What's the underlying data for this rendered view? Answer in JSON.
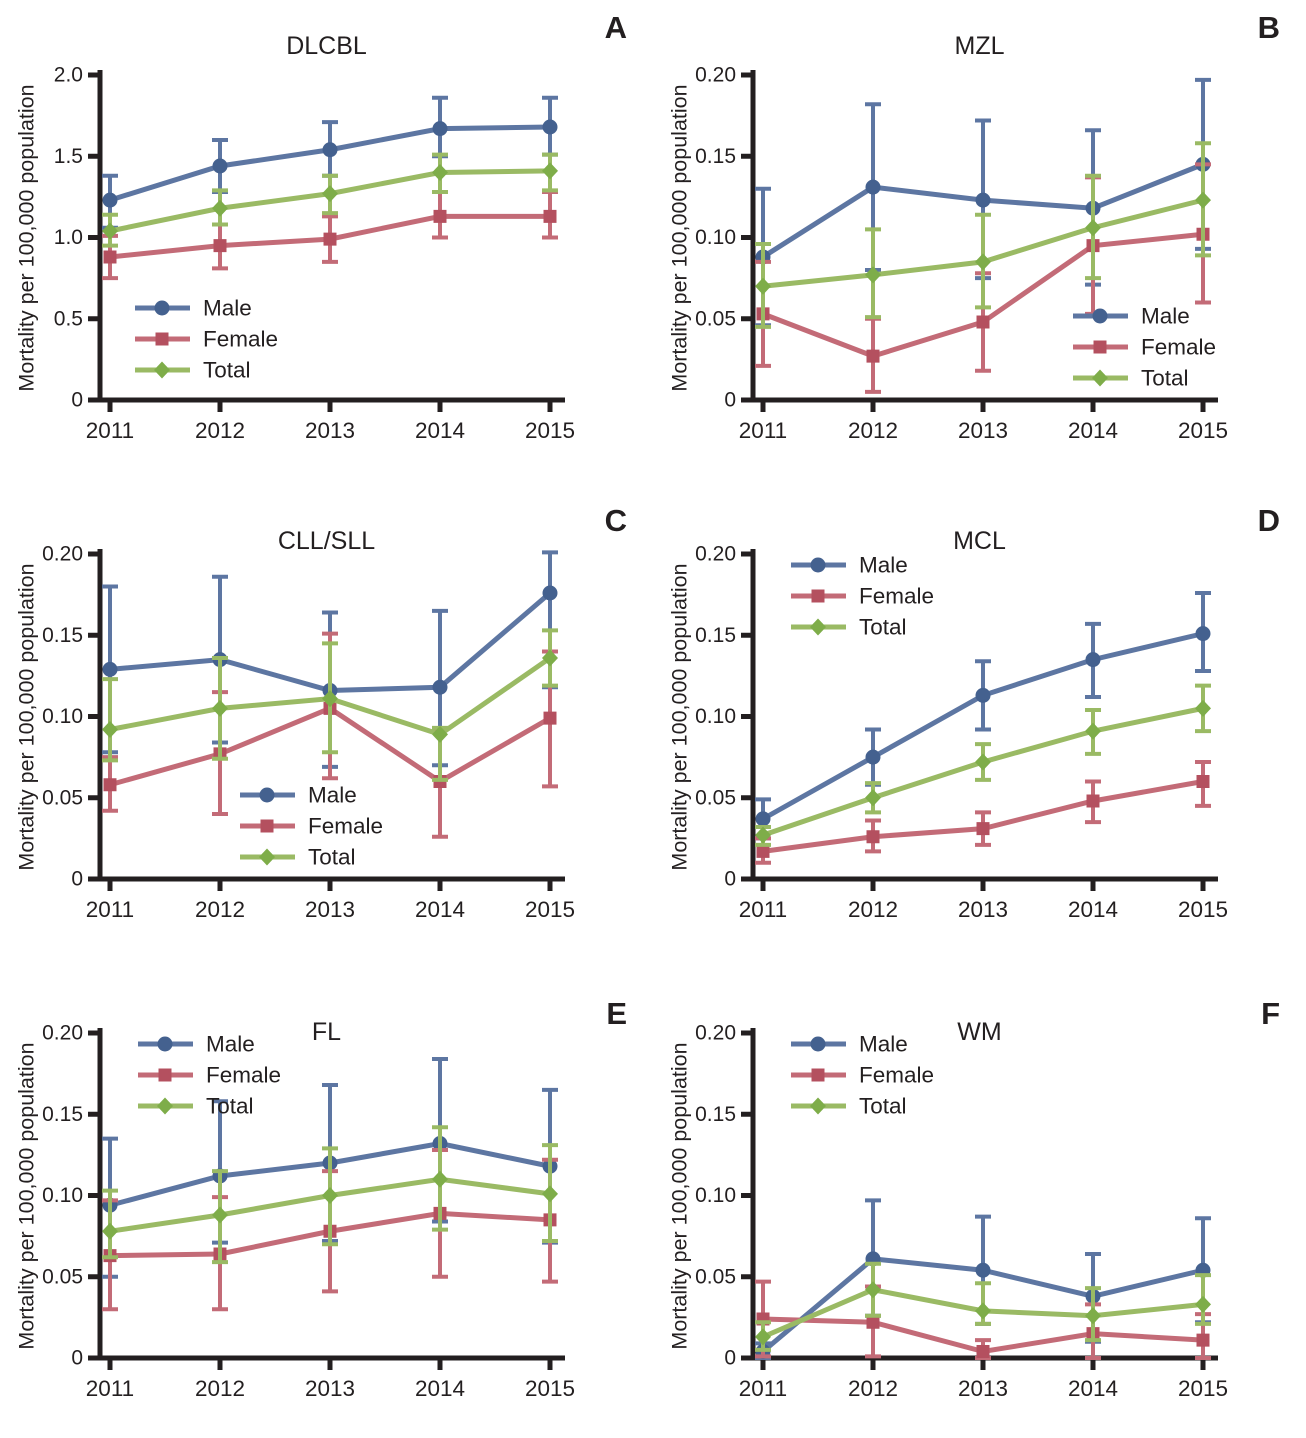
{
  "figure": {
    "ylabel": "Mortality per 100,000 population",
    "years": [
      "2011",
      "2012",
      "2013",
      "2014",
      "2015"
    ],
    "legend_entries": [
      "Male",
      "Female",
      "Total"
    ]
  },
  "colors": {
    "axis": "#231f20",
    "male_line": "#5d76a2",
    "male_marker": "#44618f",
    "female_line": "#c36b77",
    "female_marker": "#b4505f",
    "total_line": "#9aba64",
    "total_marker": "#7ead49"
  },
  "chart_data": [
    {
      "type": "line",
      "panel_letter": "A",
      "title": "DLCBL",
      "xlabel": "",
      "ylabel": "Mortality per 100,000 population",
      "x": [
        "2011",
        "2012",
        "2013",
        "2014",
        "2015"
      ],
      "ylim": [
        0,
        2.0
      ],
      "yticks": [
        0,
        0.5,
        1.0,
        1.5,
        2.0
      ],
      "ytick_labels": [
        "0",
        "0.5",
        "1.0",
        "1.5",
        "2.0"
      ],
      "grid": false,
      "legend_position": "bottom-left",
      "series": [
        {
          "name": "Male",
          "marker": "circle",
          "color": "#5d76a2",
          "marker_color": "#44618f",
          "values": [
            1.23,
            1.44,
            1.54,
            1.67,
            1.68
          ],
          "err_low": [
            1.06,
            1.28,
            1.38,
            1.5,
            1.51
          ],
          "err_high": [
            1.38,
            1.6,
            1.71,
            1.86,
            1.86
          ]
        },
        {
          "name": "Female",
          "marker": "square",
          "color": "#c36b77",
          "marker_color": "#b4505f",
          "values": [
            0.88,
            0.95,
            0.99,
            1.13,
            1.13
          ],
          "err_low": [
            0.75,
            0.81,
            0.85,
            1.0,
            1.0
          ],
          "err_high": [
            1.01,
            1.08,
            1.13,
            1.28,
            1.28
          ]
        },
        {
          "name": "Total",
          "marker": "diamond",
          "color": "#9aba64",
          "marker_color": "#7ead49",
          "values": [
            1.04,
            1.18,
            1.27,
            1.4,
            1.41
          ],
          "err_low": [
            0.95,
            1.08,
            1.15,
            1.28,
            1.29
          ],
          "err_high": [
            1.14,
            1.29,
            1.38,
            1.51,
            1.51
          ]
        }
      ]
    },
    {
      "type": "line",
      "panel_letter": "B",
      "title": "MZL",
      "xlabel": "",
      "ylabel": "Mortality per 100,000 population",
      "x": [
        "2011",
        "2012",
        "2013",
        "2014",
        "2015"
      ],
      "ylim": [
        0,
        0.2
      ],
      "yticks": [
        0,
        0.05,
        0.1,
        0.15,
        0.2
      ],
      "ytick_labels": [
        "0",
        "0.05",
        "0.10",
        "0.15",
        "0.20"
      ],
      "grid": false,
      "legend_position": "bottom-right",
      "series": [
        {
          "name": "Male",
          "marker": "circle",
          "color": "#5d76a2",
          "marker_color": "#44618f",
          "values": [
            0.088,
            0.131,
            0.123,
            0.118,
            0.145
          ],
          "err_low": [
            0.046,
            0.08,
            0.075,
            0.071,
            0.093
          ],
          "err_high": [
            0.13,
            0.182,
            0.172,
            0.166,
            0.197
          ]
        },
        {
          "name": "Female",
          "marker": "square",
          "color": "#c36b77",
          "marker_color": "#b4505f",
          "values": [
            0.053,
            0.027,
            0.048,
            0.095,
            0.102
          ],
          "err_low": [
            0.021,
            0.005,
            0.018,
            0.053,
            0.06
          ],
          "err_high": [
            0.085,
            0.05,
            0.078,
            0.137,
            0.145
          ]
        },
        {
          "name": "Total",
          "marker": "diamond",
          "color": "#9aba64",
          "marker_color": "#7ead49",
          "values": [
            0.07,
            0.077,
            0.085,
            0.106,
            0.123
          ],
          "err_low": [
            0.045,
            0.051,
            0.057,
            0.075,
            0.089
          ],
          "err_high": [
            0.096,
            0.105,
            0.114,
            0.138,
            0.158
          ]
        }
      ]
    },
    {
      "type": "line",
      "panel_letter": "C",
      "title": "CLL/SLL",
      "xlabel": "",
      "ylabel": "Mortality per 100,000 population",
      "x": [
        "2011",
        "2012",
        "2013",
        "2014",
        "2015"
      ],
      "ylim": [
        0,
        0.2
      ],
      "yticks": [
        0,
        0.05,
        0.1,
        0.15,
        0.2
      ],
      "ytick_labels": [
        "0",
        "0.05",
        "0.10",
        "0.15",
        "0.20"
      ],
      "grid": false,
      "legend_position": "bottom-center",
      "series": [
        {
          "name": "Male",
          "marker": "circle",
          "color": "#5d76a2",
          "marker_color": "#44618f",
          "values": [
            0.129,
            0.135,
            0.116,
            0.118,
            0.176
          ],
          "err_low": [
            0.078,
            0.084,
            0.069,
            0.07,
            0.118
          ],
          "err_high": [
            0.18,
            0.186,
            0.164,
            0.165,
            0.201
          ]
        },
        {
          "name": "Female",
          "marker": "square",
          "color": "#c36b77",
          "marker_color": "#b4505f",
          "values": [
            0.058,
            0.077,
            0.105,
            0.06,
            0.099
          ],
          "err_low": [
            0.042,
            0.04,
            0.062,
            0.026,
            0.057
          ],
          "err_high": [
            0.075,
            0.115,
            0.151,
            0.092,
            0.14
          ]
        },
        {
          "name": "Total",
          "marker": "diamond",
          "color": "#9aba64",
          "marker_color": "#7ead49",
          "values": [
            0.092,
            0.105,
            0.111,
            0.089,
            0.136
          ],
          "err_low": [
            0.073,
            0.074,
            0.078,
            0.061,
            0.119
          ],
          "err_high": [
            0.123,
            0.136,
            0.145,
            0.093,
            0.153
          ]
        }
      ]
    },
    {
      "type": "line",
      "panel_letter": "D",
      "title": "MCL",
      "xlabel": "",
      "ylabel": "Mortality per 100,000 population",
      "x": [
        "2011",
        "2012",
        "2013",
        "2014",
        "2015"
      ],
      "ylim": [
        0,
        0.2
      ],
      "yticks": [
        0,
        0.05,
        0.1,
        0.15,
        0.2
      ],
      "ytick_labels": [
        "0",
        "0.05",
        "0.10",
        "0.15",
        "0.20"
      ],
      "grid": false,
      "legend_position": "top-left",
      "series": [
        {
          "name": "Male",
          "marker": "circle",
          "color": "#5d76a2",
          "marker_color": "#44618f",
          "values": [
            0.037,
            0.075,
            0.113,
            0.135,
            0.151
          ],
          "err_low": [
            0.025,
            0.058,
            0.092,
            0.112,
            0.128
          ],
          "err_high": [
            0.049,
            0.092,
            0.134,
            0.157,
            0.176
          ]
        },
        {
          "name": "Female",
          "marker": "square",
          "color": "#c36b77",
          "marker_color": "#b4505f",
          "values": [
            0.017,
            0.026,
            0.031,
            0.048,
            0.06
          ],
          "err_low": [
            0.01,
            0.017,
            0.021,
            0.035,
            0.045
          ],
          "err_high": [
            0.025,
            0.036,
            0.041,
            0.06,
            0.072
          ]
        },
        {
          "name": "Total",
          "marker": "diamond",
          "color": "#9aba64",
          "marker_color": "#7ead49",
          "values": [
            0.027,
            0.05,
            0.072,
            0.091,
            0.105
          ],
          "err_low": [
            0.021,
            0.041,
            0.061,
            0.077,
            0.091
          ],
          "err_high": [
            0.032,
            0.059,
            0.083,
            0.104,
            0.119
          ]
        }
      ]
    },
    {
      "type": "line",
      "panel_letter": "E",
      "title": "FL",
      "xlabel": "",
      "ylabel": "Mortality per 100,000 population",
      "x": [
        "2011",
        "2012",
        "2013",
        "2014",
        "2015"
      ],
      "ylim": [
        0,
        0.2
      ],
      "yticks": [
        0,
        0.05,
        0.1,
        0.15,
        0.2
      ],
      "ytick_labels": [
        "0",
        "0.05",
        "0.10",
        "0.15",
        "0.20"
      ],
      "grid": false,
      "legend_position": "top-left",
      "series": [
        {
          "name": "Male",
          "marker": "circle",
          "color": "#5d76a2",
          "marker_color": "#44618f",
          "values": [
            0.094,
            0.112,
            0.12,
            0.132,
            0.118
          ],
          "err_low": [
            0.05,
            0.071,
            0.072,
            0.084,
            0.071
          ],
          "err_high": [
            0.135,
            0.158,
            0.168,
            0.184,
            0.165
          ]
        },
        {
          "name": "Female",
          "marker": "square",
          "color": "#c36b77",
          "marker_color": "#b4505f",
          "values": [
            0.063,
            0.064,
            0.078,
            0.089,
            0.085
          ],
          "err_low": [
            0.03,
            0.03,
            0.041,
            0.05,
            0.047
          ],
          "err_high": [
            0.097,
            0.099,
            0.115,
            0.128,
            0.122
          ]
        },
        {
          "name": "Total",
          "marker": "diamond",
          "color": "#9aba64",
          "marker_color": "#7ead49",
          "values": [
            0.078,
            0.088,
            0.1,
            0.11,
            0.101
          ],
          "err_low": [
            0.062,
            0.059,
            0.07,
            0.079,
            0.072
          ],
          "err_high": [
            0.103,
            0.115,
            0.129,
            0.142,
            0.131
          ]
        }
      ]
    },
    {
      "type": "line",
      "panel_letter": "F",
      "title": "WM",
      "xlabel": "",
      "ylabel": "Mortality per 100,000 population",
      "x": [
        "2011",
        "2012",
        "2013",
        "2014",
        "2015"
      ],
      "ylim": [
        0,
        0.2
      ],
      "yticks": [
        0,
        0.05,
        0.1,
        0.15,
        0.2
      ],
      "ytick_labels": [
        "0",
        "0.05",
        "0.10",
        "0.15",
        "0.20"
      ],
      "grid": false,
      "legend_position": "top-left",
      "series": [
        {
          "name": "Male",
          "marker": "circle",
          "color": "#5d76a2",
          "marker_color": "#44618f",
          "values": [
            0.004,
            0.061,
            0.054,
            0.038,
            0.054
          ],
          "err_low": [
            0.0,
            0.026,
            0.021,
            0.01,
            0.022
          ],
          "err_high": [
            0.009,
            0.097,
            0.087,
            0.064,
            0.086
          ]
        },
        {
          "name": "Female",
          "marker": "square",
          "color": "#c36b77",
          "marker_color": "#b4505f",
          "values": [
            0.024,
            0.022,
            0.004,
            0.015,
            0.011
          ],
          "err_low": [
            0.001,
            0.001,
            0.0,
            0.0,
            0.0
          ],
          "err_high": [
            0.047,
            0.044,
            0.011,
            0.033,
            0.027
          ]
        },
        {
          "name": "Total",
          "marker": "diamond",
          "color": "#9aba64",
          "marker_color": "#7ead49",
          "values": [
            0.013,
            0.042,
            0.029,
            0.026,
            0.033
          ],
          "err_low": [
            0.005,
            0.026,
            0.021,
            0.011,
            0.021
          ],
          "err_high": [
            0.022,
            0.058,
            0.046,
            0.043,
            0.051
          ]
        }
      ]
    }
  ]
}
